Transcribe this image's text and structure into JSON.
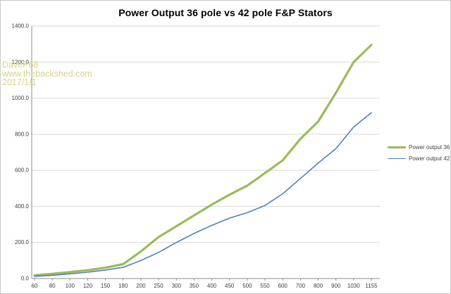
{
  "title": "Power Output 36 pole vs 42 pole F&P Stators",
  "watermark": {
    "lines": [
      "DaveP68",
      "www.thebackshed.com",
      "2017/1/1"
    ],
    "color": "#d8d28c"
  },
  "colors": {
    "background": "#ffffff",
    "grid": "#d9d9d9",
    "axis": "#8e8e8e",
    "tick_label": "#3f3f3f",
    "title": "#000000",
    "series_36": "#9bbb59",
    "series_42": "#4f81bd"
  },
  "chart_data": {
    "type": "line",
    "title": "Power Output 36 pole vs 42 pole F&P Stators",
    "xlabel": "",
    "ylabel": "",
    "x_categories": [
      "60",
      "80",
      "100",
      "120",
      "150",
      "180",
      "200",
      "250",
      "300",
      "350",
      "400",
      "450",
      "500",
      "550",
      "600",
      "700",
      "800",
      "900",
      "1030",
      "1155"
    ],
    "series": [
      {
        "name": "Power output 36",
        "color": "#9bbb59",
        "stroke_width": 3.2,
        "values": [
          18,
          26,
          36,
          46,
          60,
          80,
          150,
          230,
          290,
          350,
          410,
          465,
          515,
          585,
          655,
          775,
          870,
          1030,
          1200,
          1295
        ]
      },
      {
        "name": "Power output 42",
        "color": "#4f81bd",
        "stroke_width": 1.6,
        "values": [
          12,
          18,
          26,
          35,
          47,
          62,
          100,
          145,
          200,
          250,
          295,
          335,
          365,
          405,
          470,
          555,
          640,
          720,
          840,
          920
        ]
      }
    ],
    "ylim": [
      0,
      1400
    ],
    "ytick_values": [
      0,
      200,
      400,
      600,
      800,
      1000,
      1200,
      1400
    ],
    "ytick_labels": [
      "0.0",
      "200.0",
      "400.0",
      "600.0",
      "800.0",
      "1000.0",
      "1200.0",
      "1400.0"
    ],
    "grid": true,
    "legend_position": "right-middle"
  }
}
